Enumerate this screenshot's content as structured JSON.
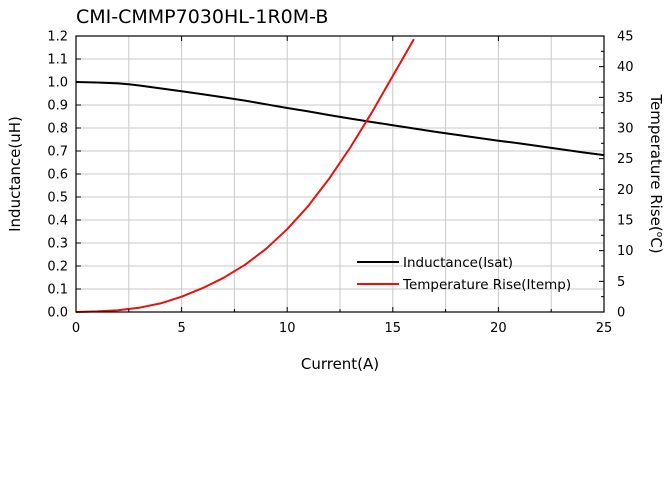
{
  "chart_data": {
    "type": "line",
    "title": "CMI-CMMP7030HL-1R0M-B",
    "xlabel": "Current(A)",
    "ylabel": "Inductance(uH)",
    "y2label": "Temperature Rise(°C)",
    "y2label_main": "Temperature Rise(",
    "y2label_sup": "o",
    "y2label_end": "C)",
    "xlim": [
      0,
      25
    ],
    "ylim": [
      0,
      1.2
    ],
    "y2lim": [
      0,
      45
    ],
    "xticks": [
      "0",
      "5",
      "10",
      "15",
      "20",
      "25"
    ],
    "yticks": [
      "0.0",
      "0.1",
      "0.2",
      "0.3",
      "0.4",
      "0.5",
      "0.6",
      "0.7",
      "0.8",
      "0.9",
      "1.0",
      "1.1",
      "1.2"
    ],
    "y2ticks": [
      "0",
      "5",
      "10",
      "15",
      "20",
      "25",
      "30",
      "35",
      "40",
      "45"
    ],
    "grid": true,
    "legend": "bottom-right",
    "series": [
      {
        "name": "Inductance(Isat)",
        "axis": "left",
        "color": "#000000",
        "x": [
          0,
          1,
          2,
          2.5,
          3,
          4,
          5,
          6,
          7,
          8,
          9,
          10,
          11,
          12,
          13,
          14,
          15,
          16,
          17,
          18,
          19,
          20,
          21,
          22,
          23,
          24,
          25
        ],
        "y": [
          1.0,
          0.998,
          0.994,
          0.99,
          0.985,
          0.972,
          0.96,
          0.947,
          0.933,
          0.919,
          0.903,
          0.887,
          0.872,
          0.856,
          0.841,
          0.826,
          0.812,
          0.798,
          0.784,
          0.771,
          0.758,
          0.745,
          0.733,
          0.72,
          0.707,
          0.694,
          0.682
        ]
      },
      {
        "name": "Temperature Rise(Itemp)",
        "axis": "right",
        "color": "#e8110e",
        "x": [
          0,
          1,
          2,
          3,
          4,
          5,
          6,
          7,
          8,
          9,
          10,
          11,
          12,
          13,
          14,
          15,
          15.5,
          16
        ],
        "y": [
          0,
          0.1,
          0.3,
          0.7,
          1.4,
          2.5,
          3.9,
          5.6,
          7.7,
          10.3,
          13.5,
          17.3,
          21.8,
          26.9,
          32.5,
          38.5,
          41.5,
          44.5
        ]
      }
    ]
  }
}
